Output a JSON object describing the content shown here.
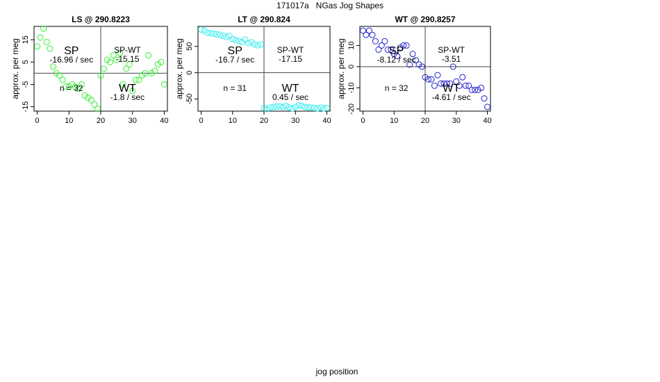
{
  "figure": {
    "title": "171017a   NGas Jog Shapes",
    "xlabel": "jog position"
  },
  "colors": {
    "LS": "#33ee33",
    "LT": "#33eeee",
    "WT": "#2222cc"
  },
  "chart_data": [
    {
      "type": "scatter",
      "title": "LS @ 290.8223",
      "ylabel": "approx. per meg",
      "xlim": [
        -1,
        41
      ],
      "ylim": [
        -17,
        21
      ],
      "xticks": [
        0,
        10,
        20,
        30,
        40
      ],
      "yticks": [
        -15,
        -5,
        5,
        15
      ],
      "grid": false,
      "color": "#33ee33",
      "points": [
        [
          0,
          12
        ],
        [
          1,
          16
        ],
        [
          2,
          20
        ],
        [
          3,
          14
        ],
        [
          4,
          11
        ],
        [
          5,
          3
        ],
        [
          6,
          0
        ],
        [
          7,
          -1
        ],
        [
          8,
          -3
        ],
        [
          9,
          -6
        ],
        [
          10,
          -6
        ],
        [
          11,
          -5
        ],
        [
          12,
          -6
        ],
        [
          13,
          -7
        ],
        [
          14,
          -5
        ],
        [
          15,
          -10
        ],
        [
          16,
          -11
        ],
        [
          17,
          -12
        ],
        [
          18,
          -14
        ],
        [
          19,
          -16
        ],
        [
          20,
          -1
        ],
        [
          21,
          2
        ],
        [
          22,
          6
        ],
        [
          23,
          5
        ],
        [
          24,
          8
        ],
        [
          25,
          6
        ],
        [
          26,
          9
        ],
        [
          27,
          -5
        ],
        [
          28,
          2
        ],
        [
          29,
          4
        ],
        [
          30,
          -8
        ],
        [
          31,
          -3
        ],
        [
          32,
          -3
        ],
        [
          33,
          -1
        ],
        [
          34,
          0
        ],
        [
          35,
          8
        ],
        [
          36,
          0
        ],
        [
          37,
          1
        ],
        [
          38,
          4
        ],
        [
          39,
          5
        ],
        [
          40,
          -5
        ]
      ],
      "annotations": {
        "sp_label": "SP",
        "sp_value": "-16.96 / sec",
        "spwt_label": "SP-WT",
        "spwt_value": "-15.15",
        "wt_label": "WT",
        "wt_value": "-1.8 / sec",
        "n_label": "n = 32"
      }
    },
    {
      "type": "scatter",
      "title": "LT @ 290.824",
      "ylabel": "approx. per meg",
      "xlim": [
        -1,
        41
      ],
      "ylim": [
        -73,
        88
      ],
      "xticks": [
        0,
        10,
        20,
        30,
        40
      ],
      "yticks": [
        -50,
        0,
        50
      ],
      "grid": false,
      "color": "#33eeee",
      "points": [
        [
          0,
          82
        ],
        [
          1,
          80
        ],
        [
          2,
          76
        ],
        [
          3,
          75
        ],
        [
          4,
          74
        ],
        [
          5,
          73
        ],
        [
          6,
          72
        ],
        [
          7,
          70
        ],
        [
          8,
          68
        ],
        [
          9,
          70
        ],
        [
          10,
          64
        ],
        [
          11,
          62
        ],
        [
          12,
          60
        ],
        [
          13,
          58
        ],
        [
          14,
          63
        ],
        [
          15,
          56
        ],
        [
          16,
          58
        ],
        [
          17,
          54
        ],
        [
          18,
          52
        ],
        [
          19,
          54
        ],
        [
          20,
          -67
        ],
        [
          21,
          -69
        ],
        [
          22,
          -66
        ],
        [
          23,
          -65
        ],
        [
          24,
          -64
        ],
        [
          25,
          -64
        ],
        [
          26,
          -65
        ],
        [
          27,
          -63
        ],
        [
          28,
          -66
        ],
        [
          29,
          -68
        ],
        [
          30,
          -65
        ],
        [
          31,
          -62
        ],
        [
          32,
          -63
        ],
        [
          33,
          -65
        ],
        [
          34,
          -66
        ],
        [
          35,
          -66
        ],
        [
          36,
          -67
        ],
        [
          37,
          -68
        ],
        [
          38,
          -66
        ],
        [
          39,
          -68
        ],
        [
          40,
          -67
        ]
      ],
      "annotations": {
        "sp_label": "SP",
        "sp_value": "-16.7 / sec",
        "spwt_label": "SP-WT",
        "spwt_value": "-17.15",
        "wt_label": "WT",
        "wt_value": "0.45 / sec",
        "n_label": "n = 31"
      }
    },
    {
      "type": "scatter",
      "title": "WT @ 290.8257",
      "ylabel": "approx. per meg",
      "xlim": [
        -1,
        41
      ],
      "ylim": [
        -21,
        19
      ],
      "xticks": [
        0,
        10,
        20,
        30,
        40
      ],
      "yticks": [
        -20,
        -10,
        0,
        10
      ],
      "grid": false,
      "color": "#2222cc",
      "points": [
        [
          0,
          17
        ],
        [
          1,
          15
        ],
        [
          2,
          17
        ],
        [
          3,
          15
        ],
        [
          4,
          12
        ],
        [
          5,
          8
        ],
        [
          6,
          10
        ],
        [
          7,
          12
        ],
        [
          8,
          8
        ],
        [
          9,
          8
        ],
        [
          10,
          6
        ],
        [
          11,
          5
        ],
        [
          12,
          9
        ],
        [
          13,
          10
        ],
        [
          14,
          10
        ],
        [
          15,
          1
        ],
        [
          16,
          6
        ],
        [
          17,
          3
        ],
        [
          18,
          1
        ],
        [
          19,
          0
        ],
        [
          20,
          -5
        ],
        [
          21,
          -6
        ],
        [
          22,
          -6
        ],
        [
          23,
          -9
        ],
        [
          24,
          -4
        ],
        [
          25,
          -8
        ],
        [
          26,
          -8
        ],
        [
          27,
          -8
        ],
        [
          28,
          -8
        ],
        [
          29,
          0
        ],
        [
          30,
          -7
        ],
        [
          31,
          -9
        ],
        [
          32,
          -5
        ],
        [
          33,
          -9
        ],
        [
          34,
          -9
        ],
        [
          35,
          -11
        ],
        [
          36,
          -11
        ],
        [
          37,
          -11
        ],
        [
          38,
          -10
        ],
        [
          39,
          -15
        ],
        [
          40,
          -19
        ]
      ],
      "annotations": {
        "sp_label": "SP",
        "sp_value": "-8.12 / sec",
        "spwt_label": "SP-WT",
        "spwt_value": "-3.51",
        "wt_label": "WT",
        "wt_value": "-4.61 / sec",
        "n_label": "n = 32"
      }
    }
  ]
}
